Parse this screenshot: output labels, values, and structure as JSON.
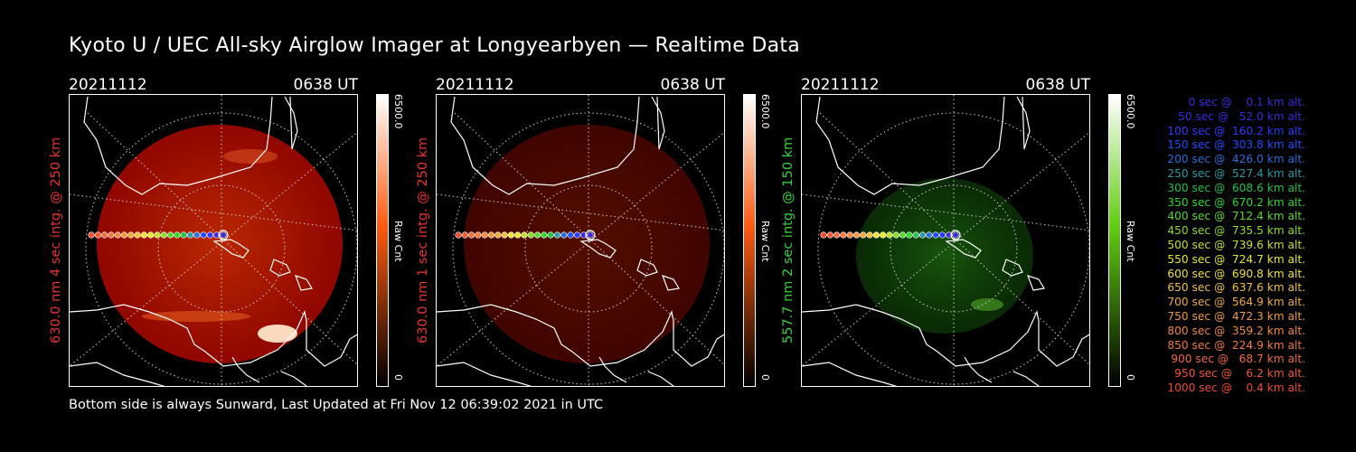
{
  "title": "Kyoto U / UEC All-sky Airglow Imager at Longyearbyen — Realtime Data",
  "footer": "Bottom side is always Sunward, Last Updated at Fri Nov 12 06:39:02 2021 in UTC",
  "panels": [
    {
      "date": "20211112",
      "time": "0638 UT",
      "ylabel": "630.0 nm 4 sec intg. @ 250 km",
      "ylabel_color": "#e8342a",
      "cbar_max": "6500.0",
      "cbar_min": "0",
      "cbar_label": "Raw Cnt",
      "cbar_color": "#ff5a10",
      "glow": "red",
      "intensity": 0.85
    },
    {
      "date": "20211112",
      "time": "0638 UT",
      "ylabel": "630.0 nm 1 sec intg. @ 250 km",
      "ylabel_color": "#e8342a",
      "cbar_max": "6500.0",
      "cbar_min": "0",
      "cbar_label": "Raw Cnt",
      "cbar_color": "#ff5a10",
      "glow": "red",
      "intensity": 0.28
    },
    {
      "date": "20211112",
      "time": "0638 UT",
      "ylabel": "557.7 nm 2 sec intg. @ 150 km",
      "ylabel_color": "#3ad03a",
      "cbar_max": "6500.0",
      "cbar_min": "0",
      "cbar_label": "Raw Cnt",
      "cbar_color": "#5fcf10",
      "glow": "green",
      "intensity": 0.45
    }
  ],
  "legend": [
    {
      "text": "   0 sec @    0.1 km alt.",
      "color": "#3b2bd8"
    },
    {
      "text": "  50 sec @   52.0 km alt.",
      "color": "#3b2bd8"
    },
    {
      "text": " 100 sec @  160.2 km alt.",
      "color": "#2b3cff"
    },
    {
      "text": " 150 sec @  303.8 km alt.",
      "color": "#1f4eff"
    },
    {
      "text": " 200 sec @  426.0 km alt.",
      "color": "#2a6edc"
    },
    {
      "text": " 250 sec @  527.4 km alt.",
      "color": "#2a9ba8"
    },
    {
      "text": " 300 sec @  608.6 km alt.",
      "color": "#24c24a"
    },
    {
      "text": " 350 sec @  670.2 km alt.",
      "color": "#2ed82e"
    },
    {
      "text": " 400 sec @  712.4 km alt.",
      "color": "#5ad82e"
    },
    {
      "text": " 450 sec @  735.5 km alt.",
      "color": "#8cdc2e"
    },
    {
      "text": " 500 sec @  739.6 km alt.",
      "color": "#c2e02e"
    },
    {
      "text": " 550 sec @  724.7 km alt.",
      "color": "#e8e82e"
    },
    {
      "text": " 600 sec @  690.8 km alt.",
      "color": "#f0e040"
    },
    {
      "text": " 650 sec @  637.6 km alt.",
      "color": "#f0c040"
    },
    {
      "text": " 700 sec @  564.9 km alt.",
      "color": "#f0aa40"
    },
    {
      "text": " 750 sec @  472.3 km alt.",
      "color": "#f09a40"
    },
    {
      "text": " 800 sec @  359.2 km alt.",
      "color": "#f08a40"
    },
    {
      "text": " 850 sec @  224.9 km alt.",
      "color": "#f07a40"
    },
    {
      "text": " 900 sec @   68.7 km alt.",
      "color": "#f06a40"
    },
    {
      "text": " 950 sec @    6.2 km alt.",
      "color": "#f05a30"
    },
    {
      "text": "1000 sec @    0.4 km alt.",
      "color": "#f04a30"
    }
  ]
}
